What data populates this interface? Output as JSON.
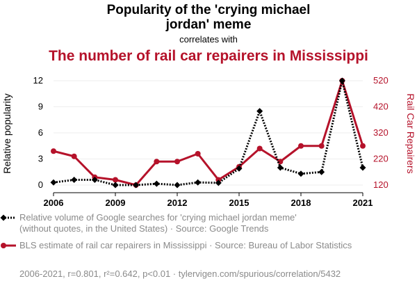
{
  "chart_data": {
    "type": "line",
    "title": "Popularity of the 'crying michael jordan' meme",
    "subtitle": "correlates with",
    "title2": "The number of rail car repairers in Mississippi",
    "x": [
      2006,
      2007,
      2008,
      2009,
      2010,
      2011,
      2012,
      2013,
      2014,
      2015,
      2016,
      2017,
      2018,
      2019,
      2020,
      2021
    ],
    "x_ticks": [
      "2006",
      "2009",
      "2012",
      "2015",
      "2018",
      "2021"
    ],
    "y_left": {
      "label": "Relative popularity",
      "ticks": [
        "0",
        "3",
        "6",
        "9",
        "12"
      ],
      "range": [
        0,
        12
      ]
    },
    "y_right": {
      "label": "Rail Car Repairers",
      "ticks": [
        "120",
        "220",
        "320",
        "420",
        "520"
      ],
      "range": [
        120,
        520
      ]
    },
    "series": [
      {
        "name": "Relative volume of Google searches for 'crying michael jordan meme' (without quotes, in the United States) · Source: Google Trends",
        "axis": "left",
        "color": "#000000",
        "style": "dotted",
        "marker": "diamond",
        "values": [
          0.3,
          0.6,
          0.6,
          0.0,
          0.0,
          0.15,
          0.0,
          0.3,
          0.25,
          1.9,
          8.5,
          2.0,
          1.3,
          1.5,
          12.0,
          2.0
        ]
      },
      {
        "name": "BLS estimate of rail car repairers in Mississippi · Source: Bureau of Labor Statistics",
        "axis": "right",
        "color": "#b5122a",
        "style": "solid",
        "marker": "circle",
        "values": [
          250,
          230,
          150,
          140,
          120,
          210,
          210,
          240,
          140,
          190,
          260,
          210,
          270,
          270,
          520,
          270
        ]
      }
    ],
    "footer": "2006-2021, r=0.801, r²=0.642, p<0.01 · tylervigen.com/spurious/correlation/5432"
  }
}
